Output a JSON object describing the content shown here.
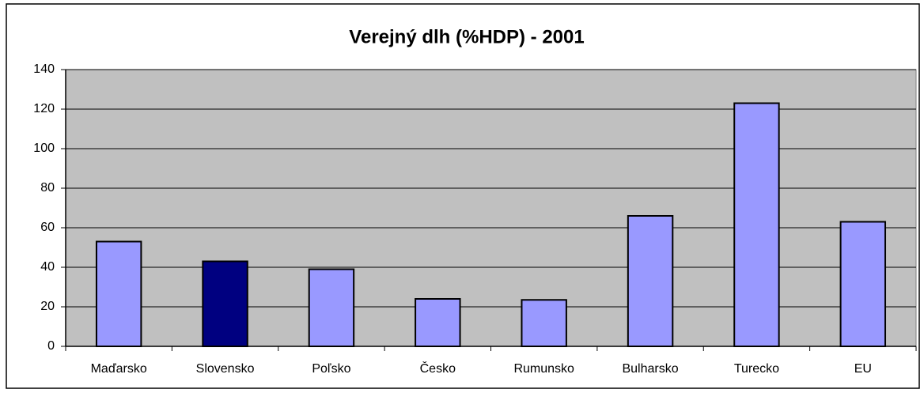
{
  "chart_data": {
    "type": "bar",
    "title": "Verejný dlh (%HDP) - 2001",
    "categories": [
      "Maďarsko",
      "Slovensko",
      "Poľsko",
      "Česko",
      "Rumunsko",
      "Bulharsko",
      "Turecko",
      "EU"
    ],
    "values": [
      53,
      43,
      39,
      24,
      23.5,
      66,
      123,
      63
    ],
    "colors": [
      "#9999ff",
      "#000080",
      "#9999ff",
      "#9999ff",
      "#9999ff",
      "#9999ff",
      "#9999ff",
      "#9999ff"
    ],
    "ylim": [
      0,
      140
    ],
    "yticks": [
      0,
      20,
      40,
      60,
      80,
      100,
      120,
      140
    ],
    "grid": true
  }
}
